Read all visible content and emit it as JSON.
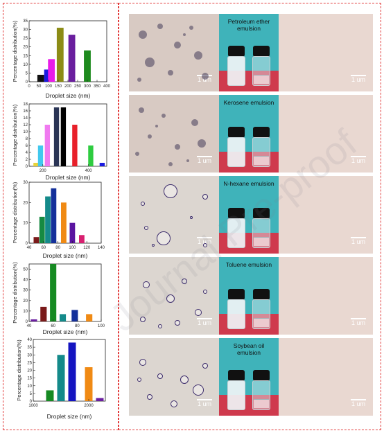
{
  "watermark": "Journal Pre-proof",
  "colors": {
    "frame": "#e23a3a",
    "teal": "#3fb3ba",
    "red_floor": "#cf3a4d"
  },
  "chart_data": [
    {
      "type": "bar",
      "ylabel": "Percentage distribution(%)",
      "xlabel": "Droplet size (nm)",
      "x": [
        60,
        95,
        115,
        160,
        220,
        300
      ],
      "values": [
        4,
        7,
        13,
        31,
        27,
        18
      ],
      "colors": [
        "#111111",
        "#1a1ae0",
        "#e81ce8",
        "#8c8c16",
        "#6a1e9e",
        "#1e8a1e"
      ],
      "xlim": [
        0,
        400
      ],
      "ylim": [
        0,
        35
      ],
      "xticks": [
        0,
        50,
        100,
        150,
        200,
        250,
        300,
        350,
        400
      ],
      "yticks": [
        0,
        5,
        10,
        15,
        20,
        25,
        30,
        35
      ]
    },
    {
      "type": "bar",
      "ylabel": "Percentage distribution(%)",
      "xlabel": "Droplet size (nm)",
      "x": [
        170,
        190,
        220,
        260,
        290,
        340,
        410,
        460
      ],
      "values": [
        1,
        6,
        12,
        17,
        17,
        12,
        6,
        1
      ],
      "colors": [
        "#e8d23a",
        "#41c8ee",
        "#f07af0",
        "#2a3455",
        "#000000",
        "#e8202a",
        "#2ecc40",
        "#1a1ae0"
      ],
      "xlim": [
        140,
        480
      ],
      "ylim": [
        0,
        18
      ],
      "xticks": [
        200,
        400
      ],
      "yticks": [
        0,
        2,
        4,
        6,
        8,
        10,
        12,
        14,
        16,
        18
      ]
    },
    {
      "type": "bar",
      "ylabel": "Percentage distribution(%)",
      "xlabel": "Droplet size (nm)",
      "x": [
        50,
        58,
        66,
        74,
        88,
        100,
        113
      ],
      "values": [
        3,
        13,
        23,
        27,
        20,
        10,
        4
      ],
      "colors": [
        "#7a1a1a",
        "#168a42",
        "#148a8a",
        "#14309a",
        "#f08a14",
        "#5a14a0",
        "#d82070"
      ],
      "xlim": [
        40,
        140
      ],
      "ylim": [
        0,
        30
      ],
      "xticks": [
        40,
        60,
        80,
        100,
        120,
        140
      ],
      "yticks": [
        0,
        10,
        20,
        30
      ]
    },
    {
      "type": "bar",
      "ylabel": "Percentage distribution(%)",
      "xlabel": "Droplet size (nm)",
      "x": [
        44,
        52,
        60,
        68,
        78,
        90
      ],
      "values": [
        2,
        14,
        55,
        7,
        11,
        7
      ],
      "colors": [
        "#6a1ea0",
        "#7a1a1a",
        "#168a22",
        "#148a8a",
        "#14309a",
        "#f08a14"
      ],
      "xlim": [
        40,
        100
      ],
      "ylim": [
        0,
        55
      ],
      "xticks": [
        40,
        60,
        80,
        100
      ],
      "yticks": [
        0,
        10,
        20,
        30,
        40,
        50
      ]
    },
    {
      "type": "bar",
      "ylabel": "Percentage distribution(%)",
      "xlabel": "Droplet size (nm)",
      "x": [
        1300,
        1500,
        1700,
        2000,
        2200
      ],
      "values": [
        7,
        30,
        38,
        22,
        2
      ],
      "colors": [
        "#168a22",
        "#148a8a",
        "#1414c0",
        "#f08a14",
        "#6a1ea0"
      ],
      "xlim": [
        1000,
        2300
      ],
      "ylim": [
        0,
        40
      ],
      "xticks": [
        1000,
        2000
      ],
      "yticks": [
        0,
        5,
        10,
        15,
        20,
        25,
        30,
        35,
        40
      ]
    }
  ],
  "panels": [
    {
      "emulsion": "Petroleum ether\nemulsion",
      "scale_left": "1 um",
      "scale_right": "1 um"
    },
    {
      "emulsion": "Kerosene emulsion",
      "scale_left": "1 um",
      "scale_right": "1 um"
    },
    {
      "emulsion": "N-hexane emulsion",
      "scale_left": "1 um",
      "scale_right": "1 um"
    },
    {
      "emulsion": "Toluene emulsion",
      "scale_left": "1 um",
      "scale_right": "1 um"
    },
    {
      "emulsion": "Soybean oil\nemulsion",
      "scale_left": "1 um",
      "scale_right": "1 um"
    }
  ]
}
